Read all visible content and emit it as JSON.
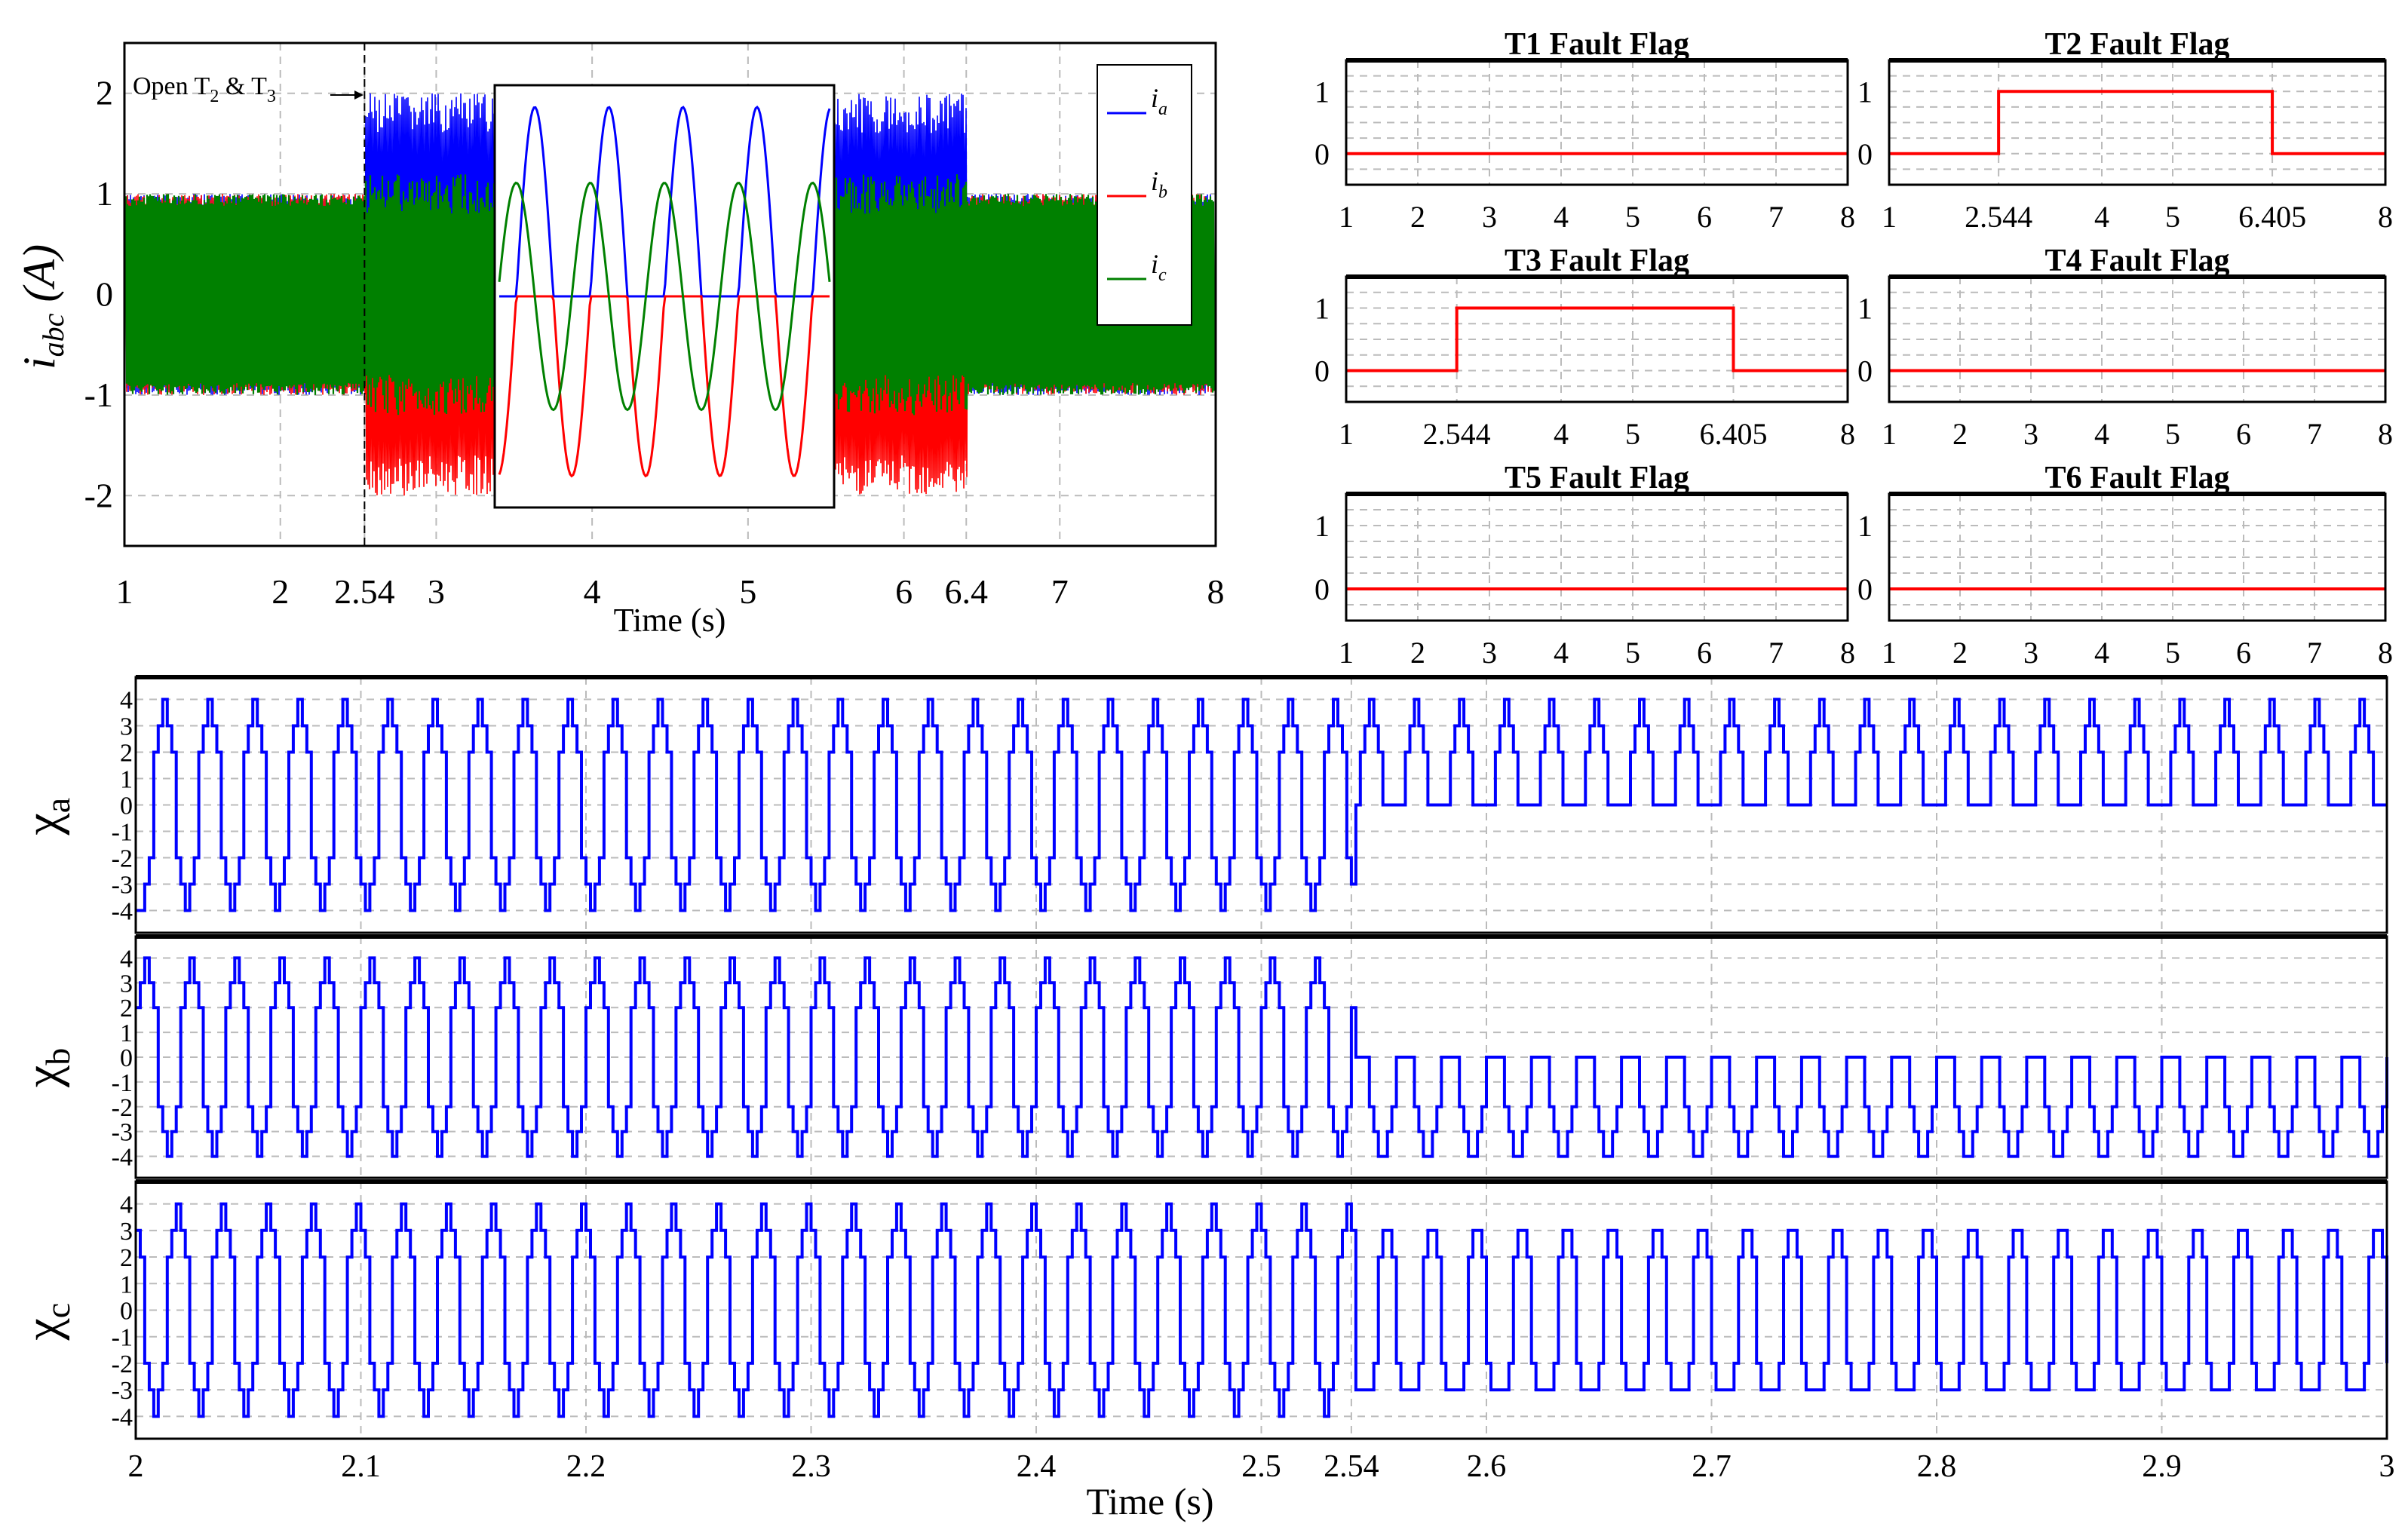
{
  "figure": {
    "current_plot": {
      "ylabel": "i",
      "ylabel_sub": "abc",
      "ylabel_unit": " (A)",
      "xlabel": "Time (s)",
      "annotation": {
        "text": "Open T",
        "sub1": "2",
        "mid": " & T",
        "sub2": "3"
      },
      "legend": [
        {
          "name": "i",
          "sub": "a",
          "color": "#0000ff"
        },
        {
          "name": "i",
          "sub": "b",
          "color": "#ff0000"
        },
        {
          "name": "i",
          "sub": "c",
          "color": "#008000"
        }
      ]
    },
    "flag_plots": [
      {
        "title": "T1 Fault Flag"
      },
      {
        "title": "T2 Fault Flag"
      },
      {
        "title": "T3 Fault Flag"
      },
      {
        "title": "T4 Fault Flag"
      },
      {
        "title": "T5 Fault Flag"
      },
      {
        "title": "T6 Fault Flag"
      }
    ],
    "chi_plots": [
      {
        "symbol": "χ",
        "sub": "a"
      },
      {
        "symbol": "χ",
        "sub": "b"
      },
      {
        "symbol": "χ",
        "sub": "c"
      }
    ],
    "bottom_xlabel": "Time (s)"
  },
  "chart_data": [
    {
      "type": "line",
      "id": "phase-currents",
      "xlim": [
        1,
        8
      ],
      "ylim": [
        -2.5,
        2.5
      ],
      "xticks": [
        "1",
        "2",
        "2.54",
        "3",
        "4",
        "5",
        "6",
        "6.4",
        "7",
        "8"
      ],
      "xtick_values": [
        1,
        2,
        2.54,
        3,
        4,
        5,
        6,
        6.4,
        7,
        8
      ],
      "yticks": [
        "-2",
        "-1",
        "0",
        "1",
        "2"
      ],
      "ytick_values": [
        -2,
        -1,
        0,
        1,
        2
      ],
      "grid": true,
      "legend_position": "top-right",
      "fault_start": 2.54,
      "fault_end": 6.4,
      "series": [
        {
          "name": "ia",
          "color": "#0000ff",
          "envelope_normal": [
            -1,
            1
          ],
          "envelope_fault": [
            -0.05,
            2
          ]
        },
        {
          "name": "ib",
          "color": "#ff0000",
          "envelope_normal": [
            -1,
            1
          ],
          "envelope_fault": [
            -2,
            0.05
          ]
        },
        {
          "name": "ic",
          "color": "#008000",
          "envelope_normal": [
            -1,
            1
          ],
          "envelope_fault": [
            -1.2,
            1.2
          ]
        }
      ],
      "inset": {
        "ylim": [
          -2.2,
          2.2
        ],
        "cycles": 4.5,
        "series": [
          {
            "name": "ia",
            "color": "#0000ff",
            "shape": "positive-half",
            "peak": 2
          },
          {
            "name": "ib",
            "color": "#ff0000",
            "shape": "negative-half",
            "peak": -1.9
          },
          {
            "name": "ic",
            "color": "#008000",
            "shape": "full-sine",
            "peak": 1.2
          }
        ]
      }
    },
    {
      "type": "line",
      "id": "fault-flags",
      "xlim": [
        1,
        8
      ],
      "ylim": [
        -0.5,
        1.5
      ],
      "yticks": [
        "0",
        "1"
      ],
      "ytick_values": [
        0,
        1
      ],
      "grid": true,
      "panels": [
        {
          "name": "T1",
          "xticks": [
            "1",
            "2",
            "3",
            "4",
            "5",
            "6",
            "7",
            "8"
          ],
          "xtick_values": [
            1,
            2,
            3,
            4,
            5,
            6,
            7,
            8
          ],
          "steps": [
            [
              1,
              0
            ],
            [
              8,
              0
            ]
          ]
        },
        {
          "name": "T2",
          "xticks": [
            "1",
            "2.544",
            "4",
            "5",
            "6.405",
            "8"
          ],
          "xtick_values": [
            1,
            2.544,
            4,
            5,
            6.405,
            8
          ],
          "steps": [
            [
              1,
              0
            ],
            [
              2.544,
              1
            ],
            [
              6.405,
              0
            ],
            [
              8,
              0
            ]
          ]
        },
        {
          "name": "T3",
          "xticks": [
            "1",
            "2.544",
            "4",
            "5",
            "6.405",
            "8"
          ],
          "xtick_values": [
            1,
            2.544,
            4,
            5,
            6.405,
            8
          ],
          "steps": [
            [
              1,
              0
            ],
            [
              2.544,
              1
            ],
            [
              6.405,
              0
            ],
            [
              8,
              0
            ]
          ]
        },
        {
          "name": "T4",
          "xticks": [
            "1",
            "2",
            "3",
            "4",
            "5",
            "6",
            "7",
            "8"
          ],
          "xtick_values": [
            1,
            2,
            3,
            4,
            5,
            6,
            7,
            8
          ],
          "steps": [
            [
              1,
              0
            ],
            [
              8,
              0
            ]
          ]
        },
        {
          "name": "T5",
          "xticks": [
            "1",
            "2",
            "3",
            "4",
            "5",
            "6",
            "7",
            "8"
          ],
          "xtick_values": [
            1,
            2,
            3,
            4,
            5,
            6,
            7,
            8
          ],
          "steps": [
            [
              1,
              0
            ],
            [
              8,
              0
            ]
          ]
        },
        {
          "name": "T6",
          "xticks": [
            "1",
            "2",
            "3",
            "4",
            "5",
            "6",
            "7",
            "8"
          ],
          "xtick_values": [
            1,
            2,
            3,
            4,
            5,
            6,
            7,
            8
          ],
          "steps": [
            [
              1,
              0
            ],
            [
              8,
              0
            ]
          ]
        }
      ]
    },
    {
      "type": "line",
      "id": "chi-signals",
      "xlim": [
        2,
        3
      ],
      "xticks": [
        "2",
        "2.1",
        "2.2",
        "2.3",
        "2.4",
        "2.5",
        "2.54",
        "2.6",
        "2.7",
        "2.8",
        "2.9",
        "3"
      ],
      "xtick_values": [
        2,
        2.1,
        2.2,
        2.3,
        2.4,
        2.5,
        2.54,
        2.6,
        2.7,
        2.8,
        2.9,
        3
      ],
      "ylim": [
        -4.5,
        4.5
      ],
      "yticks": [
        "-4",
        "-3",
        "-2",
        "-1",
        "0",
        "1",
        "2",
        "3",
        "4"
      ],
      "ytick_values": [
        -4,
        -3,
        -2,
        -1,
        0,
        1,
        2,
        3,
        4
      ],
      "grid": true,
      "fault_time": 2.54,
      "period": 0.02,
      "series": [
        {
          "name": "chi_a",
          "color": "#0000ff",
          "phase": 0.0,
          "levels_before": [
            -4,
            -3,
            -2,
            2,
            3,
            4,
            3,
            2,
            -2,
            -3
          ],
          "levels_after": [
            0,
            2,
            3,
            4,
            3,
            2,
            0,
            0,
            0,
            0
          ]
        },
        {
          "name": "chi_b",
          "color": "#0000ff",
          "phase": 0.3333,
          "levels_before": [
            -4,
            -3,
            -2,
            2,
            3,
            4,
            3,
            2,
            -2,
            -3
          ],
          "levels_after": [
            -4,
            -3,
            -2,
            0,
            0,
            0,
            0,
            -2,
            -3,
            -4
          ]
        },
        {
          "name": "chi_c",
          "color": "#0000ff",
          "phase": 0.6667,
          "levels_before": [
            -4,
            -3,
            -2,
            2,
            3,
            4,
            3,
            2,
            -2,
            -3
          ],
          "levels_after": [
            -3,
            -2,
            2,
            3,
            3,
            2,
            -2,
            -3,
            -3,
            -3
          ]
        }
      ]
    }
  ]
}
